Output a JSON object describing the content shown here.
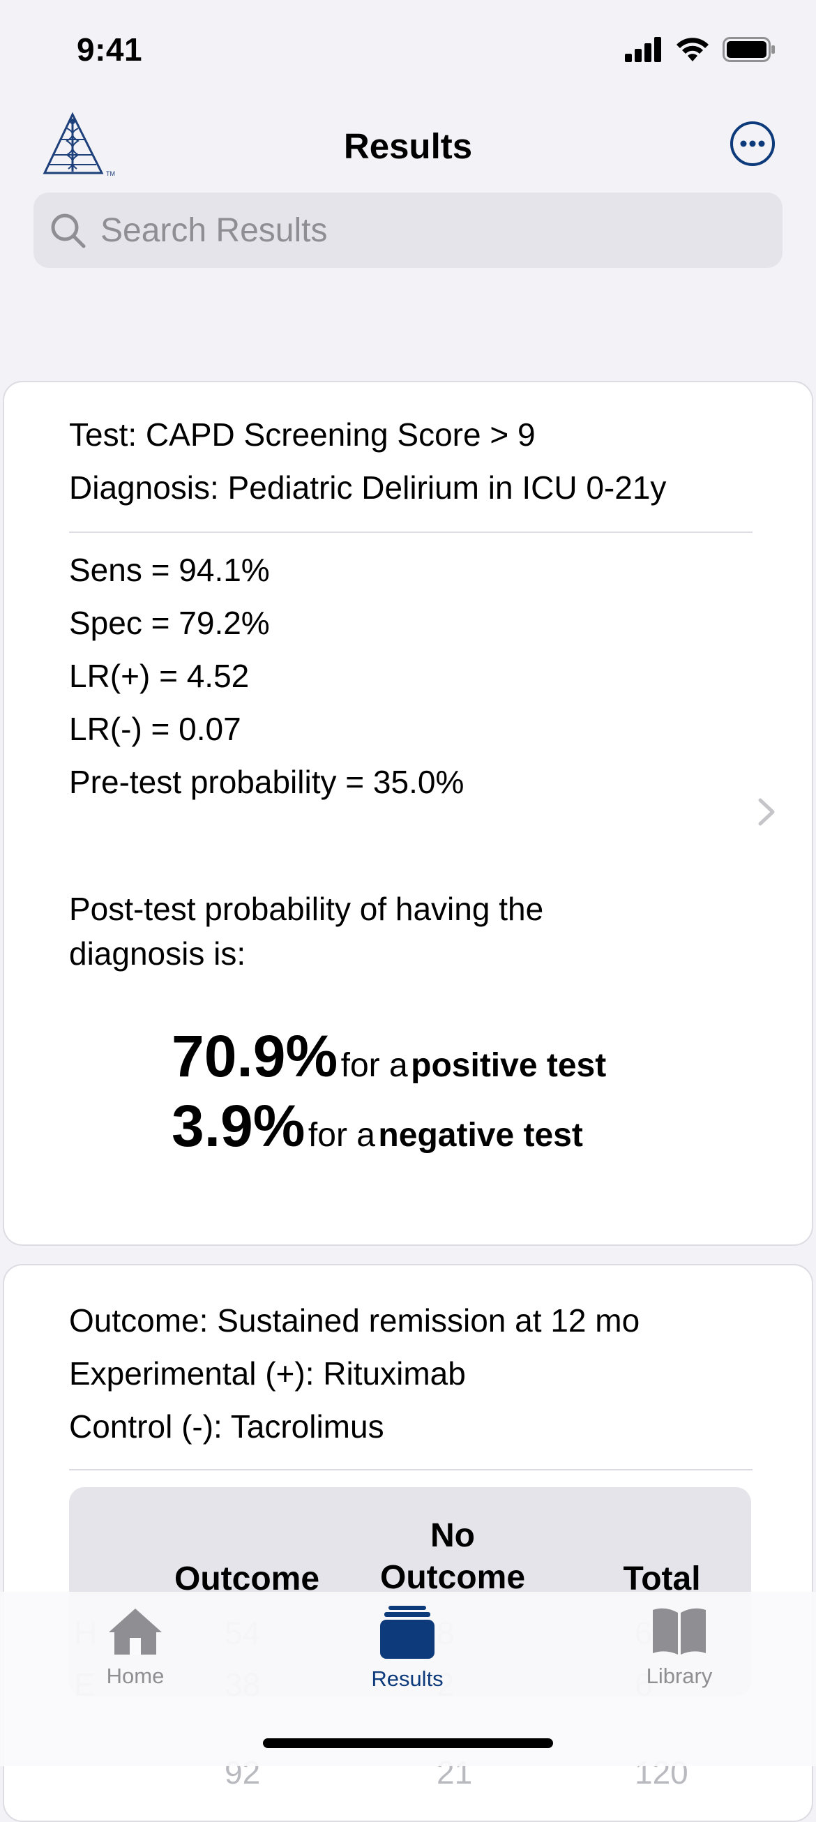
{
  "status_bar": {
    "time": "9:41"
  },
  "nav": {
    "title": "Results"
  },
  "search": {
    "placeholder": "Search Results"
  },
  "card1": {
    "test": "Test: CAPD Screening Score > 9",
    "diagnosis": "Diagnosis: Pediatric Delirium in ICU 0-21y",
    "sens": "Sens = 94.1%",
    "spec": "Spec = 79.2%",
    "lr_pos": "LR(+) = 4.52",
    "lr_neg": "LR(-) = 0.07",
    "pretest": "Pre-test probability = 35.0%",
    "post_intro_line1": "Post-test probability of having the",
    "post_intro_line2": "diagnosis is:",
    "pos_value": "70.9%",
    "pos_for": "for a",
    "pos_label": "positive test",
    "neg_value": "3.9%",
    "neg_for": "for a",
    "neg_label": "negative test"
  },
  "card2": {
    "outcome": "Outcome: Sustained remission at 12 mo",
    "experimental": "Experimental (+): Rituximab",
    "control": "Control (-): Tacrolimus",
    "table_headers": {
      "outcome": "Outcome",
      "no_outcome_line1": "No",
      "no_outcome_line2": "Outcome",
      "total": "Total"
    },
    "ghost_row1": {
      "label": "H",
      "c1": "54",
      "c2": "8",
      "c3": "6"
    },
    "ghost_row2": {
      "label": "E",
      "c1": "38",
      "c2": "2",
      "c3": "6"
    },
    "ghost_row3": {
      "c1": "92",
      "c2": "21",
      "c3": "120"
    }
  },
  "tabbar": {
    "home": "Home",
    "results": "Results",
    "library": "Library",
    "active_color": "#0d3a7a",
    "inactive_color": "#8e8e93"
  }
}
